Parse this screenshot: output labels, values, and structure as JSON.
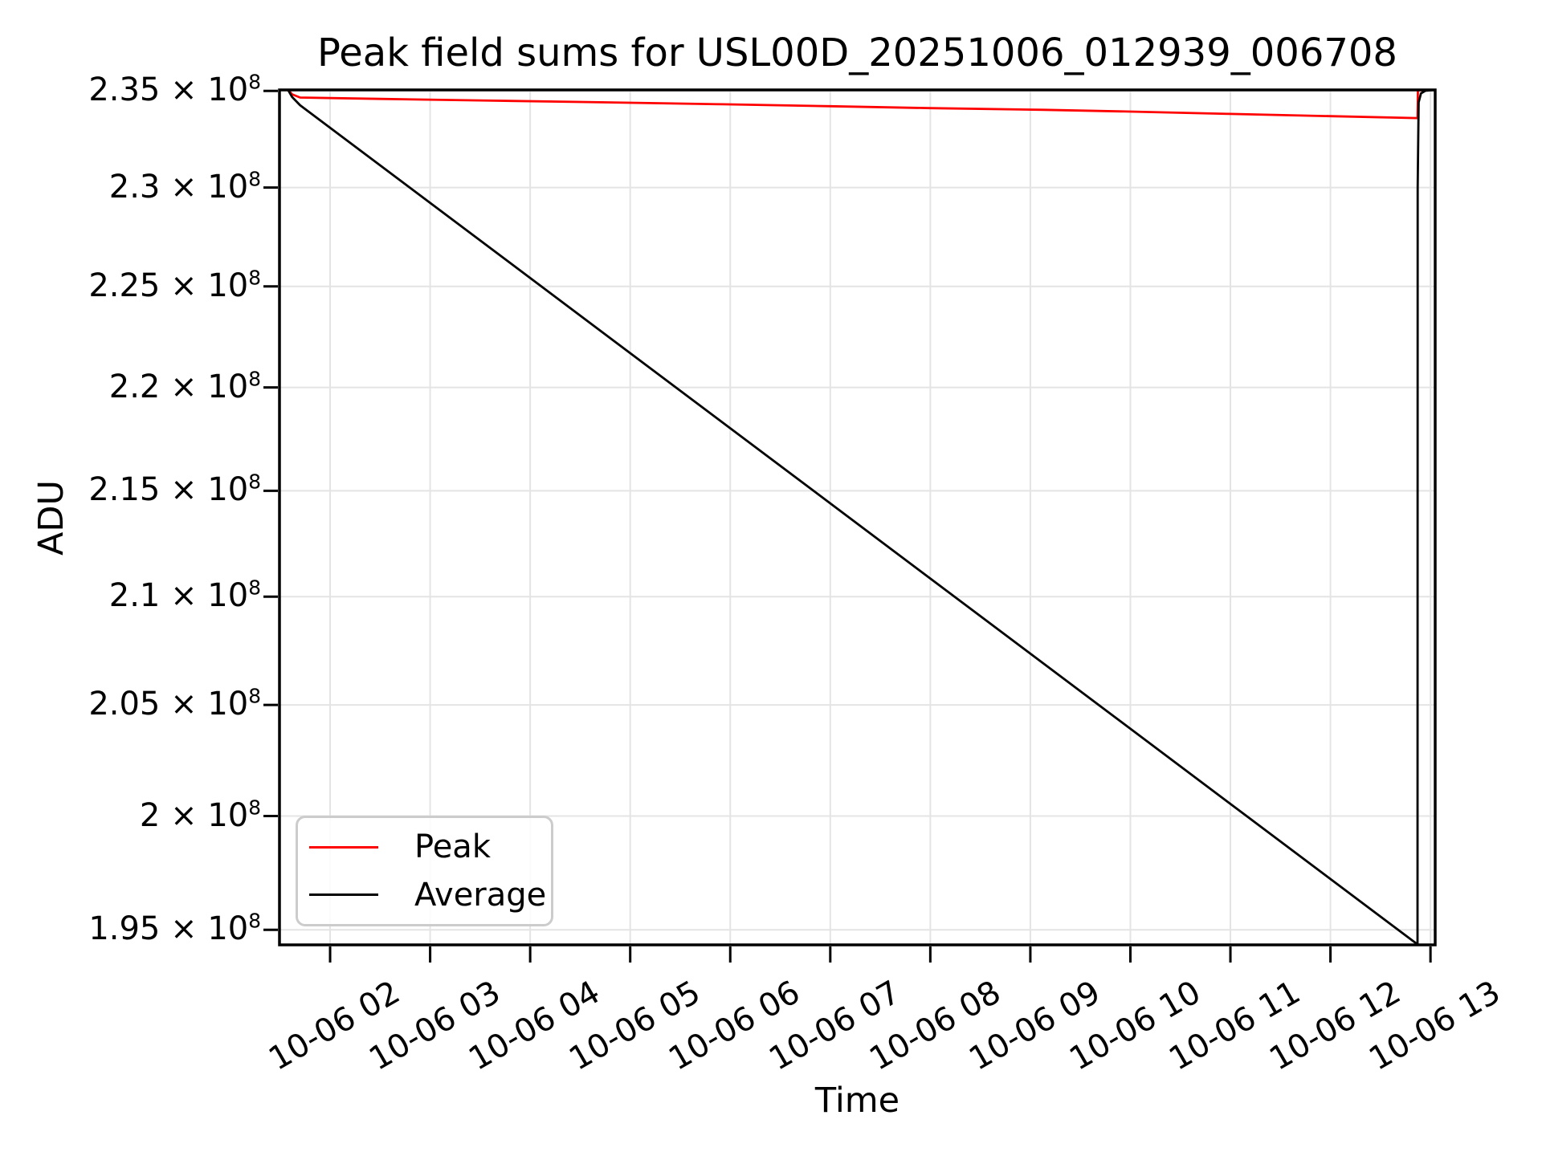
{
  "chart_data": {
    "type": "line",
    "title": "Peak field sums for USL00D_20251006_012939_006708",
    "xlabel": "Time",
    "ylabel": "ADU",
    "yscale": "log",
    "grid": true,
    "legend_position": "lower left",
    "x_axis_note": "time of day on 2025-10-06, decimal hours",
    "xlim_hours": [
      1.494,
      13.047
    ],
    "ylim_1e8": [
      1.9435,
      2.3505
    ],
    "xticks": [
      {
        "value": 2,
        "label": "10-06 02"
      },
      {
        "value": 3,
        "label": "10-06 03"
      },
      {
        "value": 4,
        "label": "10-06 04"
      },
      {
        "value": 5,
        "label": "10-06 05"
      },
      {
        "value": 6,
        "label": "10-06 06"
      },
      {
        "value": 7,
        "label": "10-06 07"
      },
      {
        "value": 8,
        "label": "10-06 08"
      },
      {
        "value": 9,
        "label": "10-06 09"
      },
      {
        "value": 10,
        "label": "10-06 10"
      },
      {
        "value": 11,
        "label": "10-06 11"
      },
      {
        "value": 12,
        "label": "10-06 12"
      },
      {
        "value": 13,
        "label": "10-06 13"
      }
    ],
    "yticks": [
      {
        "value_1e8": 2.35,
        "label": "2.35 × 10^8"
      },
      {
        "value_1e8": 2.3,
        "label": "2.3 × 10^8"
      },
      {
        "value_1e8": 2.25,
        "label": "2.25 × 10^8"
      },
      {
        "value_1e8": 2.2,
        "label": "2.2 × 10^8"
      },
      {
        "value_1e8": 2.15,
        "label": "2.15 × 10^8"
      },
      {
        "value_1e8": 2.1,
        "label": "2.1 × 10^8"
      },
      {
        "value_1e8": 2.05,
        "label": "2.05 × 10^8"
      },
      {
        "value_1e8": 2.0,
        "label": "2 × 10^8"
      },
      {
        "value_1e8": 1.95,
        "label": "1.95 × 10^8"
      }
    ],
    "series": [
      {
        "name": "Peak",
        "color": "#ff0000",
        "points_hour_vs_adu_1e8": [
          [
            1.494,
            2.3505
          ],
          [
            1.58,
            2.3505
          ],
          [
            1.62,
            2.3482
          ],
          [
            1.7,
            2.3465
          ],
          [
            2.5,
            2.3458
          ],
          [
            3.5,
            2.345
          ],
          [
            4.5,
            2.3442
          ],
          [
            5.93,
            2.343
          ],
          [
            7.0,
            2.342
          ],
          [
            8.0,
            2.341
          ],
          [
            9.14,
            2.3401
          ],
          [
            10.0,
            2.3392
          ],
          [
            11.0,
            2.338
          ],
          [
            12.0,
            2.3368
          ],
          [
            12.87,
            2.3358
          ],
          [
            12.874,
            2.3503
          ],
          [
            13.047,
            2.3505
          ]
        ]
      },
      {
        "name": "Average",
        "color": "#000000",
        "points_hour_vs_adu_1e8": [
          [
            1.494,
            2.3505
          ],
          [
            1.58,
            2.3505
          ],
          [
            1.62,
            2.3468
          ],
          [
            1.7,
            2.3425
          ],
          [
            12.87,
            1.9437
          ],
          [
            12.872,
            2.3
          ],
          [
            12.882,
            2.344
          ],
          [
            12.905,
            2.3487
          ],
          [
            12.95,
            2.3501
          ],
          [
            13.047,
            2.3505
          ]
        ]
      }
    ],
    "colors": {
      "grid": "#e4e4e4",
      "spine": "#000000",
      "legend_border": "#cccccc"
    }
  }
}
